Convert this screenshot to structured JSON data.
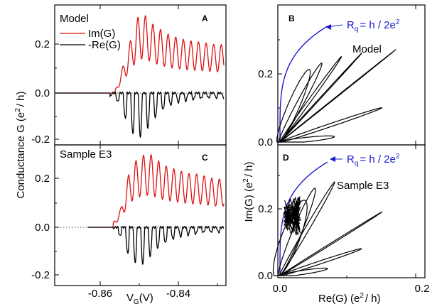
{
  "chart_data": [
    {
      "panel": "A",
      "type": "line",
      "annotation": "Model",
      "xlim": [
        -0.872,
        -0.828
      ],
      "ylim": [
        -0.22,
        0.34
      ],
      "yticks": [
        "-0.2",
        "0.0",
        "0.2"
      ],
      "ylabel": "Conductance G (e²/ h)",
      "zero_line": "dotted",
      "legend": "upper-left",
      "series": [
        {
          "name": "Im(G)",
          "color": "#dd1111",
          "x": [
            -0.872,
            -0.8565,
            -0.8545,
            -0.8525,
            -0.8505,
            -0.8485,
            -0.8465,
            -0.8445,
            -0.8425,
            -0.8405,
            -0.8385,
            -0.8365,
            -0.8345,
            -0.8325,
            -0.8305,
            -0.8285
          ],
          "y": [
            0.0,
            0.01,
            0.11,
            0.22,
            0.32,
            0.32,
            0.28,
            0.26,
            0.24,
            0.23,
            0.22,
            0.215,
            0.21,
            0.205,
            0.2,
            0.2
          ]
        },
        {
          "name": "-Re(G)",
          "color": "#000000",
          "x": [
            -0.872,
            -0.8575,
            -0.8555,
            -0.8535,
            -0.8515,
            -0.8495,
            -0.8475,
            -0.8455,
            -0.8435,
            -0.8415,
            -0.8395,
            -0.8375,
            -0.8355,
            -0.8335,
            -0.8315,
            -0.8285
          ],
          "y": [
            0.0,
            -0.015,
            -0.04,
            -0.12,
            -0.18,
            -0.18,
            -0.13,
            -0.09,
            -0.06,
            -0.045,
            -0.035,
            -0.03,
            -0.025,
            -0.02,
            -0.02,
            -0.02
          ]
        }
      ]
    },
    {
      "panel": "C",
      "type": "line",
      "annotation": "Sample E3",
      "xlim": [
        -0.872,
        -0.828
      ],
      "xticks": [
        "-0.86",
        "-0.84"
      ],
      "xlabel": "V_G(V)",
      "ylim": [
        -0.22,
        0.34
      ],
      "yticks": [
        "-0.2",
        "0.0",
        "0.2"
      ],
      "ylabel": "Conductance G (e²/ h)",
      "zero_line": "dotted",
      "legend": "upper-right",
      "series": [
        {
          "name": "Im(G)",
          "color": "#dd1111",
          "x": [
            -0.8635,
            -0.857,
            -0.855,
            -0.853,
            -0.851,
            -0.849,
            -0.847,
            -0.845,
            -0.843,
            -0.841,
            -0.839,
            -0.837,
            -0.835,
            -0.833,
            -0.831,
            -0.8285
          ],
          "y": [
            0.0,
            0.02,
            0.08,
            0.22,
            0.28,
            0.3,
            0.3,
            0.27,
            0.25,
            0.24,
            0.23,
            0.22,
            0.22,
            0.21,
            0.2,
            0.2
          ]
        },
        {
          "name": "-Re(G)",
          "color": "#000000",
          "x": [
            -0.8635,
            -0.857,
            -0.855,
            -0.853,
            -0.851,
            -0.849,
            -0.847,
            -0.845,
            -0.843,
            -0.841,
            -0.839,
            -0.837,
            -0.835,
            -0.833,
            -0.831,
            -0.8285
          ],
          "y": [
            0.0,
            -0.005,
            -0.04,
            -0.12,
            -0.15,
            -0.15,
            -0.11,
            -0.08,
            -0.06,
            -0.045,
            -0.035,
            -0.03,
            -0.025,
            -0.02,
            -0.02,
            -0.02
          ]
        }
      ]
    },
    {
      "panel": "B",
      "type": "line",
      "annotation": "Model",
      "xlim": [
        0.0,
        0.2
      ],
      "ylim": [
        0.0,
        0.35
      ],
      "yticks": [
        "0.0",
        "0.2"
      ],
      "ylabel": "Im(G) (e²/ h)",
      "reference_curve": {
        "label": "Rq = h / 2e²",
        "color": "#1a1ad0"
      },
      "series": [
        {
          "name": "",
          "color": "#000000",
          "x": [
            0.0,
            0.01,
            0.04,
            0.08,
            0.14,
            0.17,
            0.07
          ],
          "y": [
            0.0,
            0.12,
            0.22,
            0.26,
            0.22,
            0.12,
            0.01
          ]
        }
      ]
    },
    {
      "panel": "D",
      "type": "line",
      "annotation": "Sample E3",
      "xlim": [
        0.0,
        0.2
      ],
      "xticks": [
        "0.0",
        "0.2"
      ],
      "xlabel": "Re(G) (e²/ h)",
      "ylim": [
        0.0,
        0.35
      ],
      "yticks": [
        "0.0",
        "0.2"
      ],
      "ylabel": "Im(G) (e²/ h)",
      "reference_curve": {
        "label": "Rq = h / 2e²",
        "color": "#1a1ad0"
      },
      "series": [
        {
          "name": "",
          "color": "#000000",
          "x": [
            0.0,
            0.02,
            0.03,
            0.07,
            0.15,
            0.13,
            0.08
          ],
          "y": [
            0.0,
            0.2,
            0.24,
            0.3,
            0.19,
            0.08,
            0.02
          ]
        }
      ]
    }
  ],
  "text": {
    "panel_a": "A",
    "panel_b": "B",
    "panel_c": "C",
    "panel_d": "D",
    "model": "Model",
    "sample": "Sample E3",
    "legend_im": "Im(G)",
    "legend_re": "-Re(G)",
    "rq_prefix": "R",
    "rq_sub": "q",
    "rq_rest": "= h / 2e",
    "rq_sup": "2",
    "left_ylabel": "Conductance G (e",
    "left_ylabel_sup": "2",
    "left_ylabel_end": "/ h)",
    "right_ylabel": "Im(G) (e",
    "right_ylabel_sup": "2",
    "right_ylabel_end": "/ h)",
    "left_xlabel": "V",
    "left_xlabel_sub": "G",
    "left_xlabel_end": "(V)",
    "right_xlabel": "Re(G) (e",
    "right_xlabel_sup": "2",
    "right_xlabel_end": "/ h)",
    "ticks": {
      "left_y": [
        "0.2",
        "0.0",
        "-0.2"
      ],
      "left_x": [
        "-0.86",
        "-0.84"
      ],
      "right_y": [
        "0.2",
        "0.0"
      ],
      "right_x": [
        "0.0",
        "0.2"
      ]
    }
  }
}
